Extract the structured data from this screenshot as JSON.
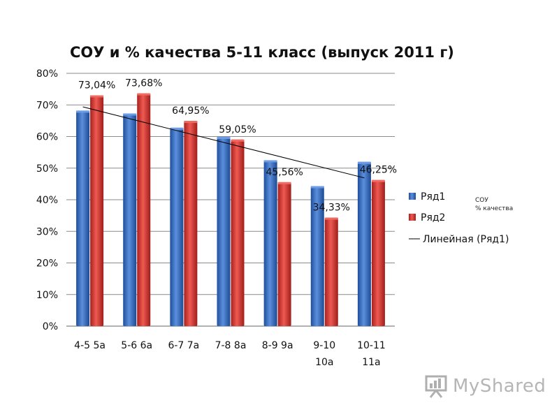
{
  "chart_data": {
    "type": "bar",
    "title": "СОУ и % качества 5-11 класс (выпуск 2011 г)",
    "categories": [
      [
        "4-5 5а"
      ],
      [
        "5-6 6а"
      ],
      [
        "6-7 7а"
      ],
      [
        "7-8 8а"
      ],
      [
        "8-9 9а"
      ],
      [
        "9-10",
        "10а"
      ],
      [
        "10-11",
        "11а"
      ]
    ],
    "series": [
      {
        "name": "Ряд1",
        "values": [
          68.2,
          67.3,
          62.8,
          59.9,
          52.5,
          44.3,
          52.0
        ],
        "color": "#3a6fc4",
        "labels": []
      },
      {
        "name": "Ряд2",
        "values": [
          73.04,
          73.68,
          64.95,
          59.05,
          45.56,
          34.33,
          46.25
        ],
        "color": "#d83a34",
        "labels": [
          "73,04%",
          "73,68%",
          "64,95%",
          "59,05%",
          "45,56%",
          "34,33%",
          "46,25%"
        ]
      }
    ],
    "trendline": {
      "name": "Линейная (Ряд1)",
      "series": "Ряд1",
      "color": "#000000"
    },
    "ylim": [
      0,
      80
    ],
    "yticks": [
      "0%",
      "10%",
      "20%",
      "30%",
      "40%",
      "50%",
      "60%",
      "70%",
      "80%"
    ],
    "grid": true,
    "legend": "right"
  },
  "side_note": [
    "СОУ",
    "% качества"
  ],
  "watermark": "MyShared"
}
